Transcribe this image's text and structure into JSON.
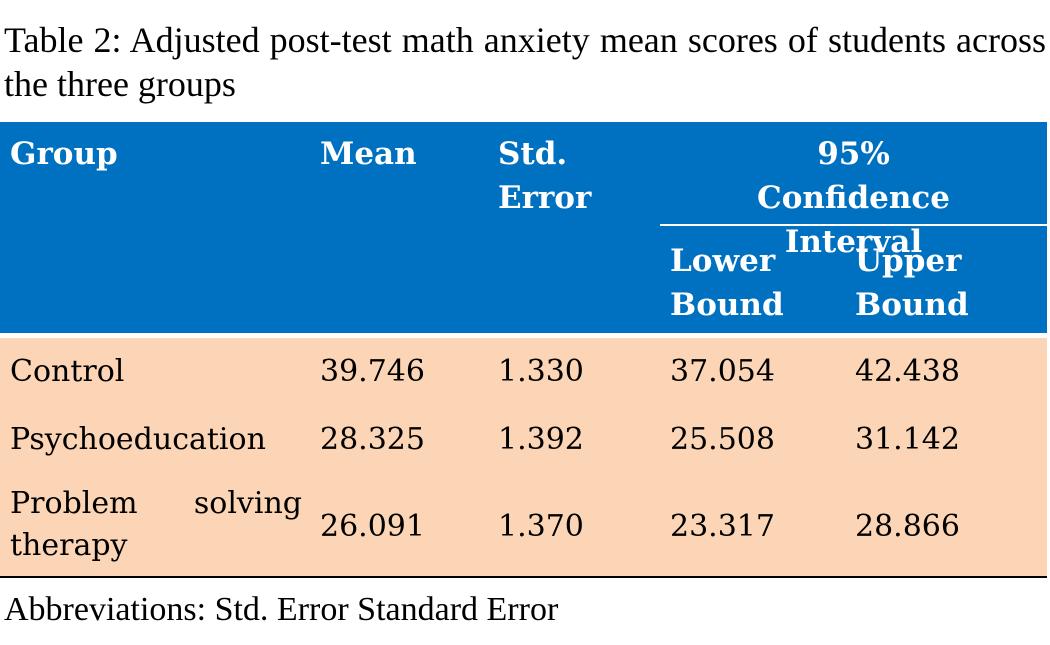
{
  "caption": "Table 2: Adjusted post-test math anxiety mean scores of students across the three groups",
  "table": {
    "header": {
      "group": "Group",
      "mean": "Mean",
      "std_error": "Std. Error",
      "ci": "95% Confidence Interval",
      "lower": "Lower Bound",
      "upper": "Upper Bound"
    },
    "rows": [
      [
        "Control",
        "39.746",
        "1.330",
        "37.054",
        "42.438"
      ],
      [
        "Psychoeducation",
        "28.325",
        "1.392",
        "25.508",
        "31.142"
      ],
      [
        "Problem solving therapy",
        "26.091",
        "1.370",
        "23.317",
        "28.866"
      ]
    ]
  },
  "footnote": "Abbreviations: Std. Error Standard Error"
}
